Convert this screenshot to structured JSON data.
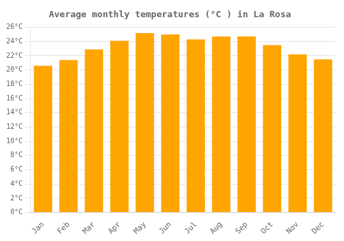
{
  "chart_data": {
    "type": "bar",
    "title": "Average monthly temperatures (°C ) in La Rosa",
    "categories": [
      "Jan",
      "Feb",
      "Mar",
      "Apr",
      "May",
      "Jun",
      "Jul",
      "Aug",
      "Sep",
      "Oct",
      "Nov",
      "Dec"
    ],
    "values": [
      20.6,
      21.4,
      22.9,
      24.1,
      25.2,
      25.0,
      24.3,
      24.7,
      24.7,
      23.5,
      22.2,
      21.5
    ],
    "color": "#FFA500",
    "ylim": [
      0,
      26
    ],
    "yticks": [
      {
        "value": 0,
        "label": "0°C"
      },
      {
        "value": 2,
        "label": "2°C"
      },
      {
        "value": 4,
        "label": "4°C"
      },
      {
        "value": 6,
        "label": "6°C"
      },
      {
        "value": 8,
        "label": "8°C"
      },
      {
        "value": 10,
        "label": "10°C"
      },
      {
        "value": 12,
        "label": "12°C"
      },
      {
        "value": 14,
        "label": "14°C"
      },
      {
        "value": 16,
        "label": "16°C"
      },
      {
        "value": 18,
        "label": "18°C"
      },
      {
        "value": 20,
        "label": "20°C"
      },
      {
        "value": 22,
        "label": "22°C"
      },
      {
        "value": 24,
        "label": "24°C"
      },
      {
        "value": 26,
        "label": "26°C"
      }
    ],
    "grid": true
  }
}
